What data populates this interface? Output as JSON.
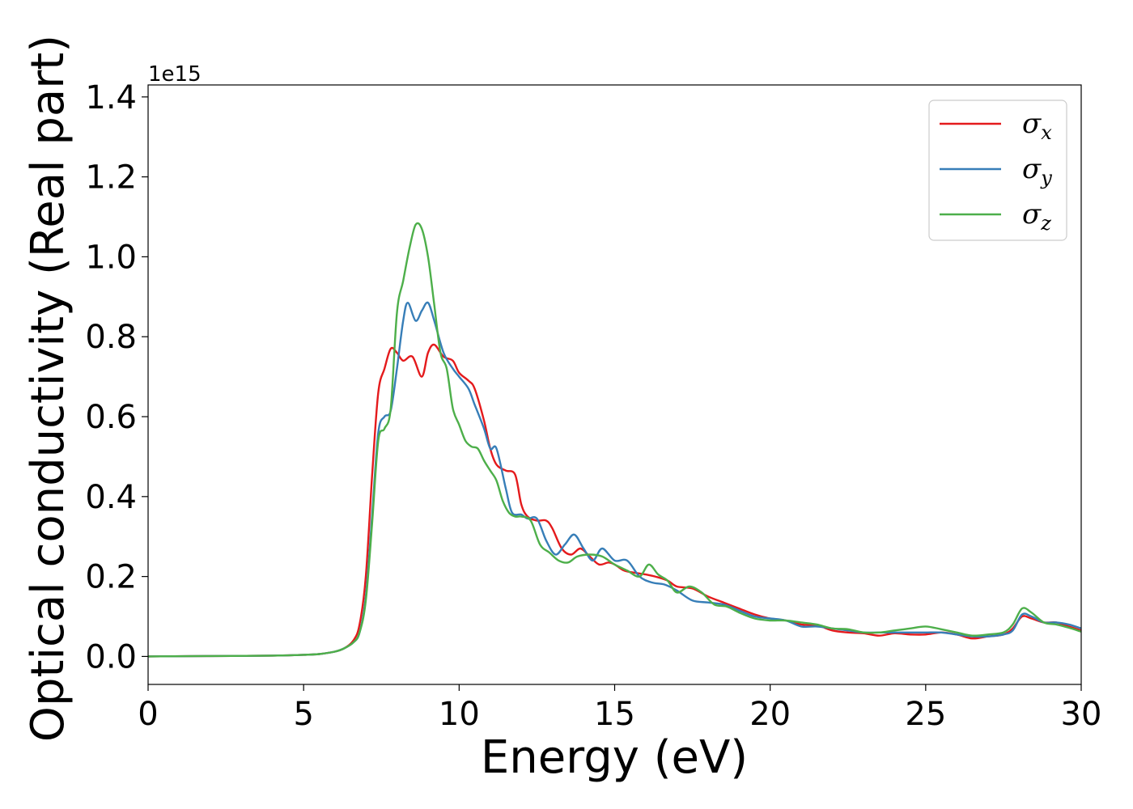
{
  "chart_data": {
    "type": "line",
    "xlabel": "Energy (eV)",
    "ylabel": "Optical conductivity (Real part)",
    "y_offset_text": "1e15",
    "xlim": [
      0,
      30
    ],
    "ylim": [
      -0.07,
      1.43
    ],
    "x_ticks": [
      0,
      5,
      10,
      15,
      20,
      25,
      30
    ],
    "y_ticks": [
      0.0,
      0.2,
      0.4,
      0.6,
      0.8,
      1.0,
      1.2,
      1.4
    ],
    "x_tick_labels": [
      "0",
      "5",
      "10",
      "15",
      "20",
      "25",
      "30"
    ],
    "y_tick_labels": [
      "0.0",
      "0.2",
      "0.4",
      "0.6",
      "0.8",
      "1.0",
      "1.2",
      "1.4"
    ],
    "grid": false,
    "legend_position": "top-right",
    "series": [
      {
        "name": "σx",
        "symbol": "σ",
        "subscript": "x",
        "color": "#e41a1c",
        "points": [
          [
            0,
            0
          ],
          [
            2,
            0.001
          ],
          [
            4,
            0.002
          ],
          [
            5,
            0.004
          ],
          [
            5.5,
            0.006
          ],
          [
            6,
            0.012
          ],
          [
            6.3,
            0.02
          ],
          [
            6.6,
            0.04
          ],
          [
            6.8,
            0.08
          ],
          [
            7.0,
            0.2
          ],
          [
            7.2,
            0.45
          ],
          [
            7.4,
            0.66
          ],
          [
            7.6,
            0.72
          ],
          [
            7.8,
            0.77
          ],
          [
            8.0,
            0.76
          ],
          [
            8.2,
            0.74
          ],
          [
            8.5,
            0.75
          ],
          [
            8.8,
            0.7
          ],
          [
            9.0,
            0.76
          ],
          [
            9.2,
            0.78
          ],
          [
            9.5,
            0.75
          ],
          [
            9.8,
            0.74
          ],
          [
            10.0,
            0.71
          ],
          [
            10.3,
            0.69
          ],
          [
            10.5,
            0.67
          ],
          [
            10.8,
            0.59
          ],
          [
            11.0,
            0.52
          ],
          [
            11.2,
            0.48
          ],
          [
            11.5,
            0.465
          ],
          [
            11.8,
            0.455
          ],
          [
            12.0,
            0.38
          ],
          [
            12.2,
            0.35
          ],
          [
            12.5,
            0.34
          ],
          [
            12.8,
            0.34
          ],
          [
            13.0,
            0.32
          ],
          [
            13.3,
            0.27
          ],
          [
            13.6,
            0.255
          ],
          [
            13.9,
            0.27
          ],
          [
            14.2,
            0.25
          ],
          [
            14.5,
            0.23
          ],
          [
            14.8,
            0.235
          ],
          [
            15.0,
            0.23
          ],
          [
            15.3,
            0.215
          ],
          [
            15.6,
            0.21
          ],
          [
            16.0,
            0.205
          ],
          [
            16.3,
            0.2
          ],
          [
            16.7,
            0.19
          ],
          [
            17.0,
            0.175
          ],
          [
            17.5,
            0.17
          ],
          [
            18.0,
            0.15
          ],
          [
            18.5,
            0.135
          ],
          [
            19.0,
            0.12
          ],
          [
            19.5,
            0.105
          ],
          [
            20.0,
            0.095
          ],
          [
            20.5,
            0.09
          ],
          [
            21.0,
            0.08
          ],
          [
            21.5,
            0.078
          ],
          [
            22.0,
            0.065
          ],
          [
            22.5,
            0.06
          ],
          [
            23.0,
            0.058
          ],
          [
            23.5,
            0.052
          ],
          [
            24.0,
            0.058
          ],
          [
            24.5,
            0.055
          ],
          [
            25.0,
            0.055
          ],
          [
            25.5,
            0.06
          ],
          [
            26.0,
            0.055
          ],
          [
            26.5,
            0.045
          ],
          [
            27.0,
            0.05
          ],
          [
            27.5,
            0.055
          ],
          [
            27.8,
            0.07
          ],
          [
            28.1,
            0.1
          ],
          [
            28.4,
            0.095
          ],
          [
            28.8,
            0.085
          ],
          [
            29.2,
            0.085
          ],
          [
            29.6,
            0.075
          ],
          [
            30.0,
            0.065
          ]
        ]
      },
      {
        "name": "σy",
        "symbol": "σ",
        "subscript": "y",
        "color": "#377eb8",
        "points": [
          [
            0,
            0
          ],
          [
            2,
            0.001
          ],
          [
            4,
            0.002
          ],
          [
            5,
            0.004
          ],
          [
            5.5,
            0.006
          ],
          [
            6,
            0.012
          ],
          [
            6.3,
            0.02
          ],
          [
            6.6,
            0.035
          ],
          [
            6.8,
            0.06
          ],
          [
            7.0,
            0.15
          ],
          [
            7.2,
            0.35
          ],
          [
            7.4,
            0.56
          ],
          [
            7.6,
            0.6
          ],
          [
            7.8,
            0.615
          ],
          [
            8.0,
            0.72
          ],
          [
            8.2,
            0.84
          ],
          [
            8.35,
            0.885
          ],
          [
            8.6,
            0.84
          ],
          [
            8.8,
            0.865
          ],
          [
            9.0,
            0.885
          ],
          [
            9.2,
            0.84
          ],
          [
            9.5,
            0.76
          ],
          [
            9.8,
            0.72
          ],
          [
            10.0,
            0.7
          ],
          [
            10.3,
            0.67
          ],
          [
            10.5,
            0.63
          ],
          [
            10.8,
            0.57
          ],
          [
            11.0,
            0.52
          ],
          [
            11.2,
            0.52
          ],
          [
            11.5,
            0.42
          ],
          [
            11.7,
            0.36
          ],
          [
            12.0,
            0.355
          ],
          [
            12.2,
            0.345
          ],
          [
            12.5,
            0.345
          ],
          [
            12.8,
            0.29
          ],
          [
            13.1,
            0.255
          ],
          [
            13.4,
            0.28
          ],
          [
            13.7,
            0.305
          ],
          [
            14.0,
            0.27
          ],
          [
            14.3,
            0.24
          ],
          [
            14.6,
            0.27
          ],
          [
            15.0,
            0.24
          ],
          [
            15.4,
            0.24
          ],
          [
            15.8,
            0.2
          ],
          [
            16.2,
            0.185
          ],
          [
            16.6,
            0.18
          ],
          [
            17.0,
            0.165
          ],
          [
            17.5,
            0.14
          ],
          [
            18.0,
            0.135
          ],
          [
            18.5,
            0.13
          ],
          [
            19.0,
            0.115
          ],
          [
            19.5,
            0.1
          ],
          [
            20.0,
            0.095
          ],
          [
            20.5,
            0.09
          ],
          [
            21.0,
            0.075
          ],
          [
            21.5,
            0.075
          ],
          [
            22.0,
            0.07
          ],
          [
            22.5,
            0.065
          ],
          [
            23.0,
            0.06
          ],
          [
            23.5,
            0.06
          ],
          [
            24.0,
            0.06
          ],
          [
            24.5,
            0.06
          ],
          [
            25.0,
            0.06
          ],
          [
            25.5,
            0.06
          ],
          [
            26.0,
            0.055
          ],
          [
            26.5,
            0.05
          ],
          [
            27.0,
            0.05
          ],
          [
            27.5,
            0.055
          ],
          [
            27.8,
            0.065
          ],
          [
            28.1,
            0.105
          ],
          [
            28.4,
            0.1
          ],
          [
            28.8,
            0.085
          ],
          [
            29.2,
            0.085
          ],
          [
            29.6,
            0.08
          ],
          [
            30.0,
            0.07
          ]
        ]
      },
      {
        "name": "σz",
        "symbol": "σ",
        "subscript": "z",
        "color": "#4daf4a",
        "points": [
          [
            0,
            0
          ],
          [
            2,
            0.001
          ],
          [
            4,
            0.002
          ],
          [
            5,
            0.004
          ],
          [
            5.5,
            0.006
          ],
          [
            6,
            0.012
          ],
          [
            6.3,
            0.02
          ],
          [
            6.6,
            0.035
          ],
          [
            6.8,
            0.06
          ],
          [
            7.0,
            0.14
          ],
          [
            7.2,
            0.33
          ],
          [
            7.4,
            0.54
          ],
          [
            7.6,
            0.57
          ],
          [
            7.8,
            0.62
          ],
          [
            8.0,
            0.86
          ],
          [
            8.2,
            0.94
          ],
          [
            8.4,
            1.02
          ],
          [
            8.6,
            1.08
          ],
          [
            8.8,
            1.07
          ],
          [
            9.0,
            1.0
          ],
          [
            9.2,
            0.88
          ],
          [
            9.4,
            0.76
          ],
          [
            9.6,
            0.72
          ],
          [
            9.8,
            0.62
          ],
          [
            10.0,
            0.58
          ],
          [
            10.2,
            0.54
          ],
          [
            10.4,
            0.525
          ],
          [
            10.6,
            0.52
          ],
          [
            10.8,
            0.49
          ],
          [
            11.0,
            0.465
          ],
          [
            11.2,
            0.44
          ],
          [
            11.4,
            0.39
          ],
          [
            11.6,
            0.36
          ],
          [
            11.8,
            0.35
          ],
          [
            12.0,
            0.35
          ],
          [
            12.3,
            0.34
          ],
          [
            12.6,
            0.28
          ],
          [
            12.9,
            0.26
          ],
          [
            13.2,
            0.24
          ],
          [
            13.5,
            0.235
          ],
          [
            13.8,
            0.25
          ],
          [
            14.2,
            0.255
          ],
          [
            14.6,
            0.25
          ],
          [
            15.0,
            0.23
          ],
          [
            15.4,
            0.215
          ],
          [
            15.8,
            0.2
          ],
          [
            16.1,
            0.23
          ],
          [
            16.4,
            0.205
          ],
          [
            16.7,
            0.19
          ],
          [
            17.0,
            0.16
          ],
          [
            17.4,
            0.175
          ],
          [
            17.8,
            0.16
          ],
          [
            18.2,
            0.13
          ],
          [
            18.6,
            0.125
          ],
          [
            19.0,
            0.11
          ],
          [
            19.5,
            0.095
          ],
          [
            20.0,
            0.09
          ],
          [
            20.5,
            0.09
          ],
          [
            21.0,
            0.085
          ],
          [
            21.5,
            0.08
          ],
          [
            22.0,
            0.07
          ],
          [
            22.5,
            0.068
          ],
          [
            23.0,
            0.06
          ],
          [
            23.5,
            0.06
          ],
          [
            24.0,
            0.065
          ],
          [
            24.5,
            0.07
          ],
          [
            25.0,
            0.075
          ],
          [
            25.5,
            0.068
          ],
          [
            26.0,
            0.06
          ],
          [
            26.5,
            0.052
          ],
          [
            27.0,
            0.055
          ],
          [
            27.5,
            0.06
          ],
          [
            27.8,
            0.08
          ],
          [
            28.1,
            0.12
          ],
          [
            28.4,
            0.11
          ],
          [
            28.8,
            0.085
          ],
          [
            29.2,
            0.08
          ],
          [
            29.6,
            0.072
          ],
          [
            30.0,
            0.062
          ]
        ]
      }
    ]
  }
}
